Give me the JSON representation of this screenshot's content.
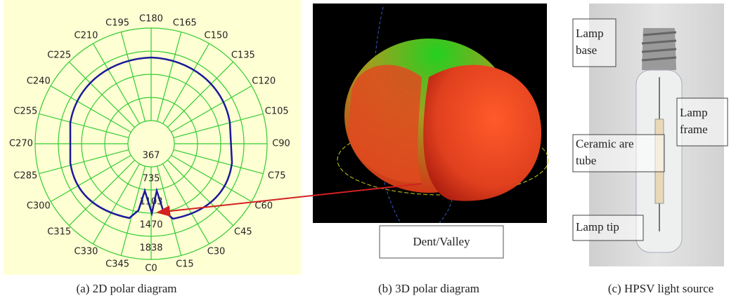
{
  "panel_a": {
    "angle_labels": [
      "C0",
      "C15",
      "C30",
      "C45",
      "C60",
      "C75",
      "C90",
      "C105",
      "C120",
      "C135",
      "C150",
      "C165",
      "C180",
      "C195",
      "C210",
      "C225",
      "C240",
      "C255",
      "C270",
      "C285",
      "C300",
      "C315",
      "C330",
      "C345"
    ],
    "radial_labels": [
      367,
      735,
      1103,
      1470,
      1838
    ],
    "caption": "(a) 2D polar diagram"
  },
  "panel_b": {
    "annotation": "Dent/Valley",
    "caption": "(b) 3D polar diagram"
  },
  "panel_c": {
    "labels": [
      {
        "lines": [
          "Lamp",
          "base"
        ]
      },
      {
        "lines": [
          "Lamp",
          "frame"
        ]
      },
      {
        "lines": [
          "Ceramic are",
          "tube"
        ]
      },
      {
        "lines": [
          "Lamp tip"
        ]
      }
    ],
    "caption": "(c) HPSV light source"
  }
}
